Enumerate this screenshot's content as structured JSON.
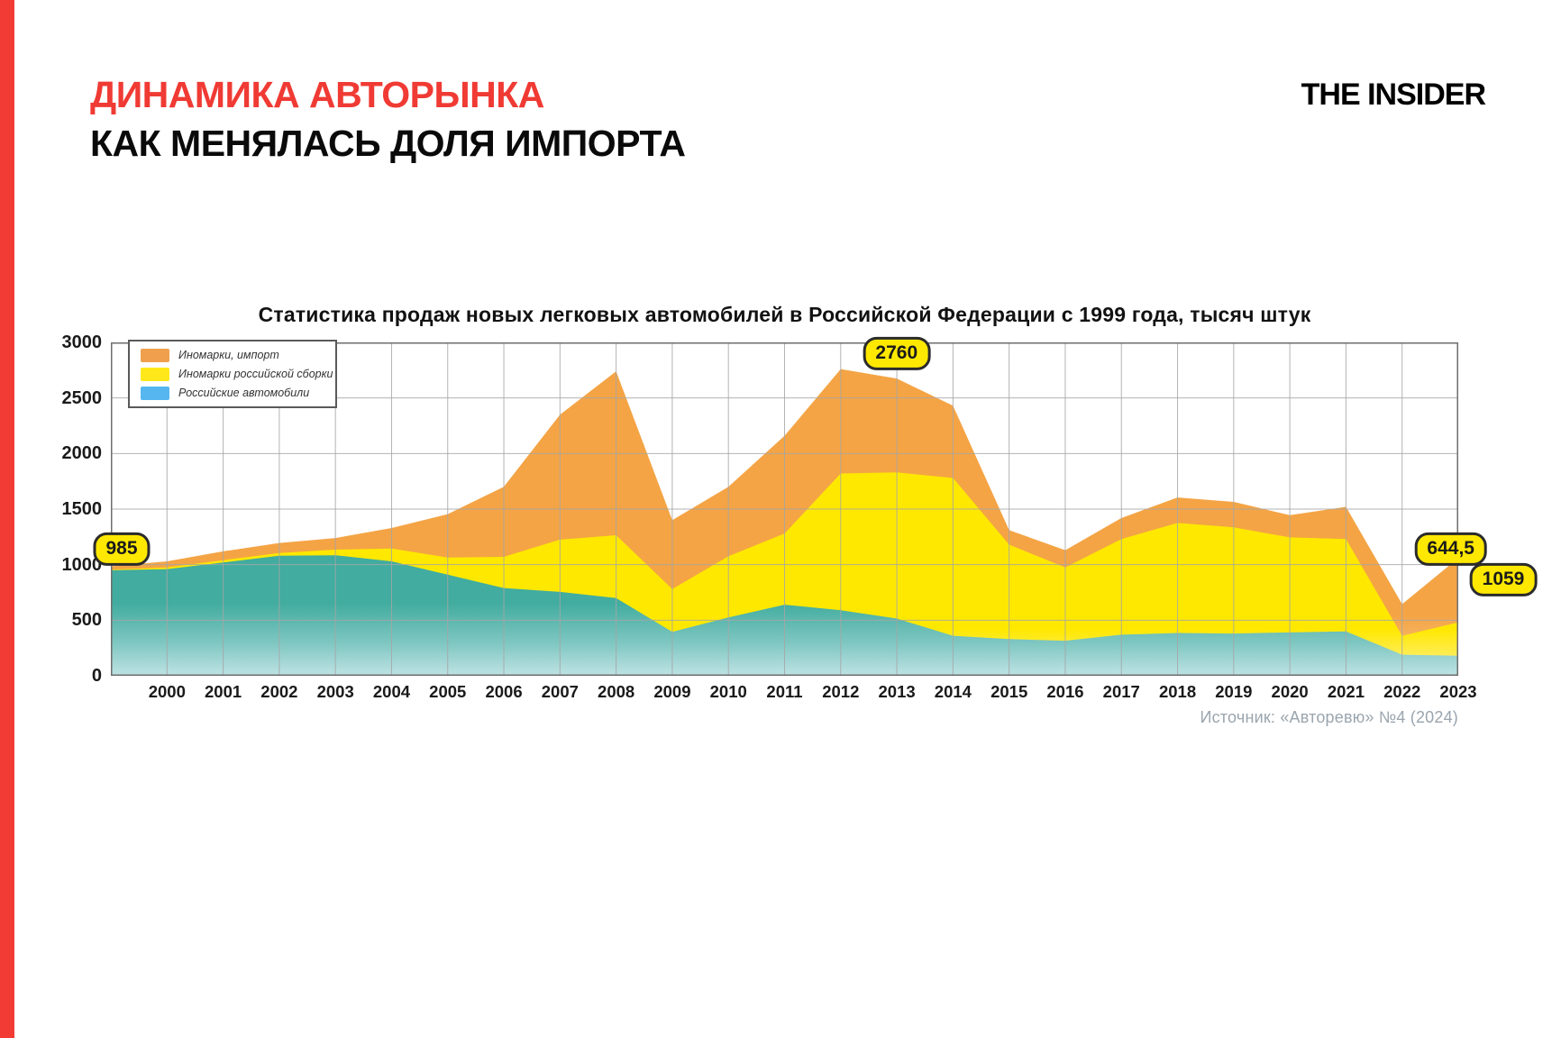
{
  "page": {
    "title_line1": "ДИНАМИКА АВТОРЫНКА",
    "title_line2": "КАК МЕНЯЛАСЬ ДОЛЯ ИМПОРТА",
    "logo": "THE INSIDER",
    "source": "Источник: «Авторевю» №4 (2024)"
  },
  "colors": {
    "accent_red": "#F23B34",
    "title_red": "#F03A34",
    "imported_orange": "#F4A445",
    "assembled_yellow": "#FFE800",
    "russian_teal": "#41AC9F",
    "russian_teal_fade": "#BFE3E4",
    "legend_blue_swatch": "#56B7F0",
    "badge_bg": "#FFE800",
    "badge_border": "#2b2b2b",
    "grid": "#A6A6A6",
    "plot_border": "#6E6E6E",
    "source_gray": "#9AA5AE"
  },
  "chart_data": {
    "type": "area",
    "stacked": true,
    "title": "Статистика продаж новых легковых автомобилей в Российской Федерации с 1999 года, тысяч штук",
    "unit": "тысяч штук",
    "grid": true,
    "legend_position": "top-left",
    "x": [
      1999,
      2000,
      2001,
      2002,
      2003,
      2004,
      2005,
      2006,
      2007,
      2008,
      2009,
      2010,
      2011,
      2012,
      2013,
      2014,
      2015,
      2016,
      2017,
      2018,
      2019,
      2020,
      2021,
      2022,
      2023
    ],
    "x_tick_labels": [
      "2000",
      "2001",
      "2002",
      "2003",
      "2004",
      "2005",
      "2006",
      "2007",
      "2008",
      "2009",
      "2010",
      "2011",
      "2012",
      "2013",
      "2014",
      "2015",
      "2016",
      "2017",
      "2018",
      "2019",
      "2020",
      "2021",
      "2022",
      "2023"
    ],
    "y_ticks": [
      0,
      500,
      1000,
      1500,
      2000,
      2500,
      3000
    ],
    "ylim": [
      0,
      3000
    ],
    "series": [
      {
        "name": "Российские автомобили",
        "legend_color": "#56B7F0",
        "fill": "teal-gradient",
        "values": [
          950,
          960,
          1020,
          1080,
          1085,
          1030,
          910,
          790,
          755,
          700,
          395,
          525,
          640,
          590,
          515,
          360,
          330,
          315,
          370,
          385,
          380,
          390,
          400,
          190,
          180
        ]
      },
      {
        "name": "Иномарки российской сборки",
        "legend_color": "#FFE81A",
        "fill": "yellow-gradient",
        "values": [
          5,
          15,
          20,
          25,
          50,
          115,
          155,
          280,
          470,
          565,
          385,
          550,
          640,
          1230,
          1315,
          1420,
          850,
          660,
          860,
          990,
          955,
          855,
          830,
          170,
          300
        ]
      },
      {
        "name": "Иномарки, импорт",
        "legend_color": "#F0A04C",
        "fill": "orange-gradient",
        "values": [
          30,
          55,
          80,
          90,
          105,
          185,
          390,
          630,
          1125,
          1475,
          620,
          625,
          880,
          940,
          845,
          650,
          130,
          155,
          190,
          230,
          230,
          200,
          290,
          284.5,
          579
        ]
      }
    ],
    "totals_estimated": [
      985,
      1030,
      1120,
      1195,
      1240,
      1330,
      1455,
      1700,
      2350,
      2740,
      1400,
      1700,
      2160,
      2760,
      2675,
      2430,
      1310,
      1130,
      1420,
      1605,
      1565,
      1445,
      1520,
      644.5,
      1059
    ],
    "annotations": [
      {
        "label": "985",
        "year": 1999,
        "value": 985
      },
      {
        "label": "2760",
        "year": 2012,
        "value": 2760
      },
      {
        "label": "644,5",
        "year": 2022,
        "value": 644.5
      },
      {
        "label": "1059",
        "year": 2023,
        "value": 1059
      }
    ]
  }
}
